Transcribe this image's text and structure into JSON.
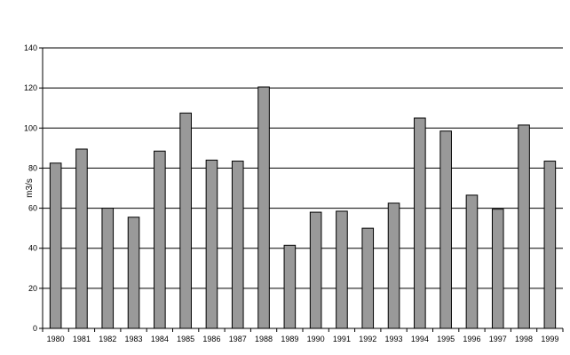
{
  "chart_data": {
    "type": "bar",
    "title": "",
    "xlabel": "",
    "ylabel": "m3/s",
    "ylim": [
      0,
      140
    ],
    "yticks": [
      0,
      20,
      40,
      60,
      80,
      100,
      120,
      140
    ],
    "grid": true,
    "legend": "none",
    "bar_color": "#999999",
    "categories": [
      "1980",
      "1981",
      "1982",
      "1983",
      "1984",
      "1985",
      "1986",
      "1987",
      "1988",
      "1989",
      "1990",
      "1991",
      "1992",
      "1993",
      "1994",
      "1995",
      "1996",
      "1997",
      "1998",
      "1999"
    ],
    "values": [
      82.5,
      89.5,
      60,
      55.5,
      88.5,
      107.5,
      84,
      83.5,
      120.5,
      41.5,
      58,
      58.5,
      50,
      62.5,
      105,
      98.5,
      66.5,
      59.5,
      101.5,
      83.5
    ]
  }
}
